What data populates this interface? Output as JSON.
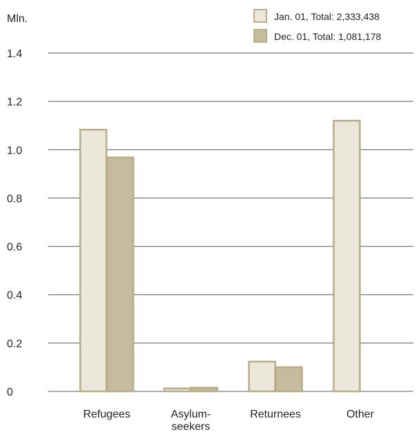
{
  "chart_data": {
    "type": "bar",
    "ylabel": "Mln.",
    "ylim": [
      0,
      1.4
    ],
    "yticks": [
      0,
      0.2,
      0.4,
      0.6,
      0.8,
      1.0,
      1.2,
      1.4
    ],
    "ytick_labels": [
      "0",
      "0.2",
      "0.4",
      "0.6",
      "0.8",
      "1.0",
      "1.2",
      "1.4"
    ],
    "categories": [
      {
        "lines": [
          "Refugees"
        ]
      },
      {
        "lines": [
          "Asylum-",
          "seekers"
        ]
      },
      {
        "lines": [
          "Returnees"
        ]
      },
      {
        "lines": [
          "Other"
        ]
      }
    ],
    "series": [
      {
        "name": "Jan. 01, Total: 2,333,438",
        "color": "#ebe7da",
        "values": [
          1.083,
          0.012,
          0.123,
          1.12
        ]
      },
      {
        "name": "Dec. 01, Total: 1,081,178",
        "color": "#c6bb9f",
        "values": [
          0.968,
          0.015,
          0.1,
          0
        ]
      }
    ],
    "bar_edge_color": "#b8ac86",
    "grid": true,
    "legend_position": "top-right"
  }
}
